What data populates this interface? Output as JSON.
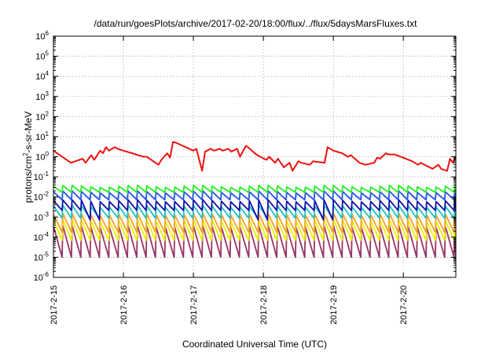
{
  "chart_data": {
    "type": "line",
    "title": "/data/run/goesPlots/archive/2017-02-20/18:00/flux/../flux/5daysMarsFluxes.txt",
    "xlabel": "Coordinated Universal Time (UTC)",
    "ylabel": {
      "pre": "protons/cm",
      "sup": "2",
      "post": "-s-sr-MeV"
    },
    "yscale": "log",
    "ylim": [
      1e-06,
      1000000.0
    ],
    "xlim": [
      "2017-02-15T00:00",
      "2017-02-20T18:00"
    ],
    "grid": true,
    "legend": "none",
    "x_ticks": [
      "2017-2-15",
      "2017-2-16",
      "2017-2-17",
      "2017-2-18",
      "2017-2-19",
      "2017-2-20"
    ],
    "y_ticks": [
      {
        "base": "10",
        "exp": "-6"
      },
      {
        "base": "10",
        "exp": "-5"
      },
      {
        "base": "10",
        "exp": "-4"
      },
      {
        "base": "10",
        "exp": "-3"
      },
      {
        "base": "10",
        "exp": "-2"
      },
      {
        "base": "10",
        "exp": "-1"
      },
      {
        "base": "10",
        "exp": "0"
      },
      {
        "base": "10",
        "exp": "1"
      },
      {
        "base": "10",
        "exp": "2"
      },
      {
        "base": "10",
        "exp": "3"
      },
      {
        "base": "10",
        "exp": "4"
      },
      {
        "base": "10",
        "exp": "5"
      },
      {
        "base": "10",
        "exp": "6"
      }
    ],
    "series": [
      {
        "color": "#ee1111",
        "kind": "points",
        "x": [
          "2017-02-15T00:00",
          "2017-02-15T06:00",
          "2017-02-15T10:00",
          "2017-02-15T11:00",
          "2017-02-15T13:00",
          "2017-02-15T14:00",
          "2017-02-15T16:00",
          "2017-02-15T17:00",
          "2017-02-15T18:00",
          "2017-02-15T19:00",
          "2017-02-15T21:00",
          "2017-02-15T22:00",
          "2017-02-16T00:00",
          "2017-02-16T03:00",
          "2017-02-16T05:00",
          "2017-02-16T06:00",
          "2017-02-16T07:00",
          "2017-02-16T08:00",
          "2017-02-16T12:00",
          "2017-02-16T13:00",
          "2017-02-16T15:00",
          "2017-02-16T16:00",
          "2017-02-16T17:00",
          "2017-02-16T18:00",
          "2017-02-17T00:00",
          "2017-02-17T01:00",
          "2017-02-17T03:00",
          "2017-02-17T04:00",
          "2017-02-17T06:00",
          "2017-02-17T07:00",
          "2017-02-17T09:00",
          "2017-02-17T10:00",
          "2017-02-17T12:00",
          "2017-02-17T13:00",
          "2017-02-17T15:00",
          "2017-02-17T16:00",
          "2017-02-17T18:00",
          "2017-02-17T19:00",
          "2017-02-17T21:00",
          "2017-02-17T22:00",
          "2017-02-18T01:00",
          "2017-02-18T02:00",
          "2017-02-18T04:00",
          "2017-02-18T05:00",
          "2017-02-18T07:00",
          "2017-02-18T09:00",
          "2017-02-18T10:00",
          "2017-02-18T12:00",
          "2017-02-18T13:00",
          "2017-02-18T16:00",
          "2017-02-18T17:00",
          "2017-02-18T21:00",
          "2017-02-18T22:00",
          "2017-02-19T00:00",
          "2017-02-19T03:00",
          "2017-02-19T05:00",
          "2017-02-19T06:00",
          "2017-02-19T09:00",
          "2017-02-19T11:00",
          "2017-02-19T14:00",
          "2017-02-19T15:00",
          "2017-02-19T16:00",
          "2017-02-19T18:00",
          "2017-02-19T19:00",
          "2017-02-19T21:00",
          "2017-02-20T00:00",
          "2017-02-20T03:00",
          "2017-02-20T05:00",
          "2017-02-20T06:00",
          "2017-02-20T10:00",
          "2017-02-20T12:00",
          "2017-02-20T13:00",
          "2017-02-20T15:00",
          "2017-02-20T16:00",
          "2017-02-20T17:00",
          "2017-02-20T18:00"
        ],
        "y": [
          2,
          0.5,
          0.8,
          0.5,
          1.2,
          0.7,
          2,
          1.5,
          3,
          2,
          3,
          2.5,
          2,
          1.5,
          1.2,
          1.1,
          1,
          1,
          0.4,
          0.7,
          1.5,
          0.9,
          5.5,
          5,
          2,
          2.5,
          0.2,
          1.8,
          2.5,
          2,
          2.5,
          2,
          2.5,
          1.8,
          2.5,
          1,
          3.5,
          2.8,
          1.5,
          1.2,
          0.7,
          1,
          0.5,
          0.8,
          0.3,
          0.5,
          0.2,
          0.6,
          0.5,
          0.4,
          0.6,
          0.5,
          3,
          2,
          1.5,
          1,
          1.2,
          0.5,
          0.4,
          0.5,
          0.9,
          0.8,
          1.5,
          1.3,
          1.3,
          0.9,
          0.6,
          0.4,
          0.5,
          0.25,
          0.4,
          0.25,
          0.2,
          0.8,
          0.5,
          1.1
        ]
      },
      {
        "color": "#22ee22",
        "kind": "sawtooth",
        "base": 0.034,
        "period_hours": 3.2,
        "decay": 2.0,
        "dropouts": []
      },
      {
        "color": "#2255ee",
        "kind": "sawtooth",
        "base": 0.018,
        "period_hours": 3.2,
        "decay": 2.5,
        "dropouts": []
      },
      {
        "color": "#1010aa",
        "kind": "sawtooth",
        "base": 0.0065,
        "period_hours": 3.2,
        "decay": 3.0,
        "dropouts": [
          "2017-02-15T10:00",
          "2017-02-17T21:00",
          "2017-02-18T18:00"
        ]
      },
      {
        "color": "#20c0c0",
        "kind": "sawtooth",
        "base": 0.0035,
        "period_hours": 3.2,
        "decay": 4.0,
        "dropouts": []
      },
      {
        "color": "#f5a020",
        "kind": "sawtooth",
        "base": 0.0014,
        "period_hours": 3.2,
        "decay": 8.0,
        "dropouts": []
      },
      {
        "color": "#eeee00",
        "kind": "sawtooth",
        "base": 0.0007,
        "period_hours": 3.2,
        "decay": 10.0,
        "dropouts": []
      },
      {
        "color": "#993366",
        "kind": "sawtooth",
        "base": 0.00035,
        "period_hours": 3.2,
        "decay": 35.0,
        "dropouts": []
      }
    ]
  }
}
